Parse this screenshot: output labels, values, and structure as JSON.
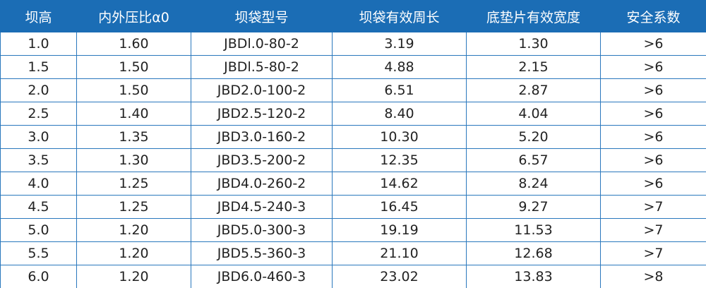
{
  "table": {
    "header": [
      "坝高",
      "内外压比α0",
      "坝袋型号",
      "坝袋有效周长",
      "底垫片有效宽度",
      "安全系数"
    ],
    "rows": [
      [
        "1.0",
        "1.60",
        "JBDl.0-80-2",
        "3.19",
        "1.30",
        ">6"
      ],
      [
        "1.5",
        "1.50",
        "JBDl.5-80-2",
        "4.88",
        "2.15",
        ">6"
      ],
      [
        "2.0",
        "1.50",
        "JBD2.0-100-2",
        "6.51",
        "2.87",
        ">6"
      ],
      [
        "2.5",
        "1.40",
        "JBD2.5-120-2",
        "8.40",
        "4.04",
        ">6"
      ],
      [
        "3.0",
        "1.35",
        "JBD3.0-160-2",
        "10.30",
        "5.20",
        ">6"
      ],
      [
        "3.5",
        "1.30",
        "JBD3.5-200-2",
        "12.35",
        "6.57",
        ">6"
      ],
      [
        "4.0",
        "1.25",
        "JBD4.0-260-2",
        "14.62",
        "8.24",
        ">6"
      ],
      [
        "4.5",
        "1.25",
        "JBD4.5-240-3",
        "16.45",
        "9.27",
        ">7"
      ],
      [
        "5.0",
        "1.20",
        "JBD5.0-300-3",
        "19.19",
        "11.53",
        ">7"
      ],
      [
        "5.5",
        "1.20",
        "JBD5.5-360-3",
        "21.10",
        "12.68",
        ">7"
      ],
      [
        "6.0",
        "1.20",
        "JBD6.0-460-3",
        "23.02",
        "13.83",
        ">8"
      ]
    ]
  }
}
